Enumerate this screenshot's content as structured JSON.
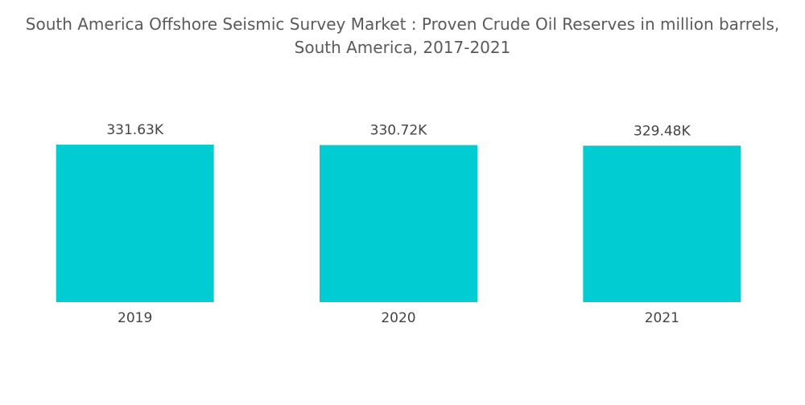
{
  "chart_data": {
    "type": "bar",
    "title": "South America Offshore Seismic Survey Market : Proven Crude Oil Reserves in million barrels, South America, 2017-2021",
    "categories": [
      "2019",
      "2020",
      "2021"
    ],
    "values": [
      331630,
      330720,
      329480
    ],
    "value_labels": [
      "331.63K",
      "330.72K",
      "329.48K"
    ],
    "color": "#00ccd1"
  }
}
